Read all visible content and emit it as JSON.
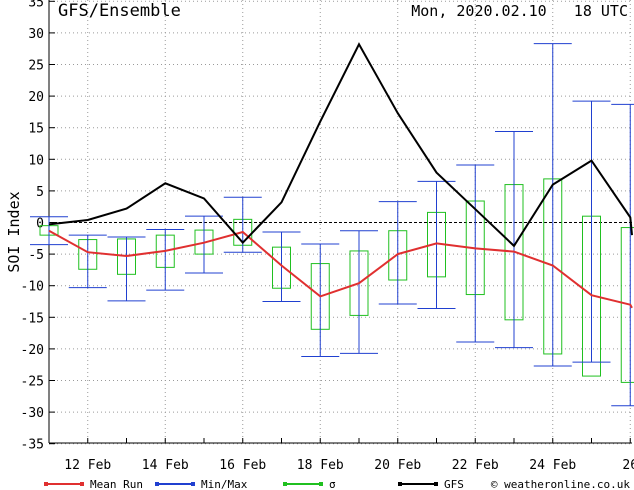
{
  "chart_data": {
    "type": "line",
    "title": "GFS/Ensemble",
    "run_time": "Mon, 2020.02.10   18 UTC",
    "ylabel": "SOI Index",
    "xlabel": "",
    "ylim": [
      -35,
      35
    ],
    "y_ticks": [
      -35,
      -30,
      -25,
      -20,
      -15,
      -10,
      -5,
      0,
      5,
      10,
      15,
      20,
      25,
      30,
      35
    ],
    "x_days": [
      11,
      12,
      13,
      14,
      15,
      16,
      17,
      18,
      19,
      20,
      21,
      22,
      23,
      24,
      25,
      26,
      26.5
    ],
    "x_tick_labels": [
      {
        "day": 12,
        "label": "12 Feb"
      },
      {
        "day": 14,
        "label": "14 Feb"
      },
      {
        "day": 16,
        "label": "16 Feb"
      },
      {
        "day": 18,
        "label": "18 Feb"
      },
      {
        "day": 20,
        "label": "20 Feb"
      },
      {
        "day": 22,
        "label": "22 Feb"
      },
      {
        "day": 24,
        "label": "24 Feb"
      },
      {
        "day": 26,
        "label": "26"
      }
    ],
    "grid": true,
    "zero_line": "dashed",
    "series": [
      {
        "name": "Mean Run",
        "color": "#e03030",
        "values": [
          -1.3,
          -4.7,
          -5.3,
          -4.5,
          -3.2,
          -1.5,
          -6.8,
          -11.7,
          -9.6,
          -5.0,
          -3.3,
          -4.1,
          -4.6,
          -6.8,
          -11.5,
          -13.0,
          -13.5
        ]
      },
      {
        "name": "GFS",
        "color": "#000000",
        "values": [
          -0.3,
          0.4,
          2.2,
          6.2,
          3.8,
          -3.2,
          3.2,
          16.0,
          28.2,
          17.3,
          7.9,
          2.1,
          -3.7,
          6.0,
          9.8,
          0.8,
          -2.0
        ]
      }
    ],
    "min_max": {
      "name": "Min/Max",
      "color": "#2040d0",
      "min": [
        -3.5,
        -10.3,
        -12.4,
        -10.7,
        -8.0,
        -4.7,
        -12.5,
        -21.2,
        -20.7,
        -12.9,
        -13.6,
        -18.9,
        -19.8,
        -22.7,
        -22.1,
        -29.0
      ],
      "max": [
        0.9,
        -2.0,
        -2.3,
        -1.1,
        1.0,
        4.0,
        -1.5,
        -3.4,
        -1.3,
        3.3,
        6.5,
        9.1,
        14.4,
        28.3,
        19.2,
        18.7
      ]
    },
    "sigma": {
      "name": "σ",
      "color": "#20c020",
      "low": [
        -2.0,
        -7.4,
        -8.2,
        -7.1,
        -5.0,
        -3.6,
        -10.4,
        -16.9,
        -14.7,
        -9.1,
        -8.6,
        -11.4,
        -15.4,
        -20.8,
        -24.3,
        -25.3
      ],
      "high": [
        -0.5,
        -2.7,
        -2.6,
        -2.0,
        -1.2,
        0.5,
        -3.9,
        -6.5,
        -4.5,
        -1.3,
        1.6,
        3.4,
        6.0,
        6.9,
        1.0,
        -0.8
      ]
    },
    "legend": {
      "placement": "bottom",
      "items": [
        {
          "label": "Mean Run",
          "color": "#e03030",
          "marker": "line"
        },
        {
          "label": "Min/Max",
          "color": "#2040d0",
          "marker": "line"
        },
        {
          "label": "σ",
          "color": "#20c020",
          "marker": "line"
        },
        {
          "label": "GFS",
          "color": "#000000",
          "marker": "line"
        }
      ],
      "credit": "© weatheronline.co.uk"
    }
  }
}
